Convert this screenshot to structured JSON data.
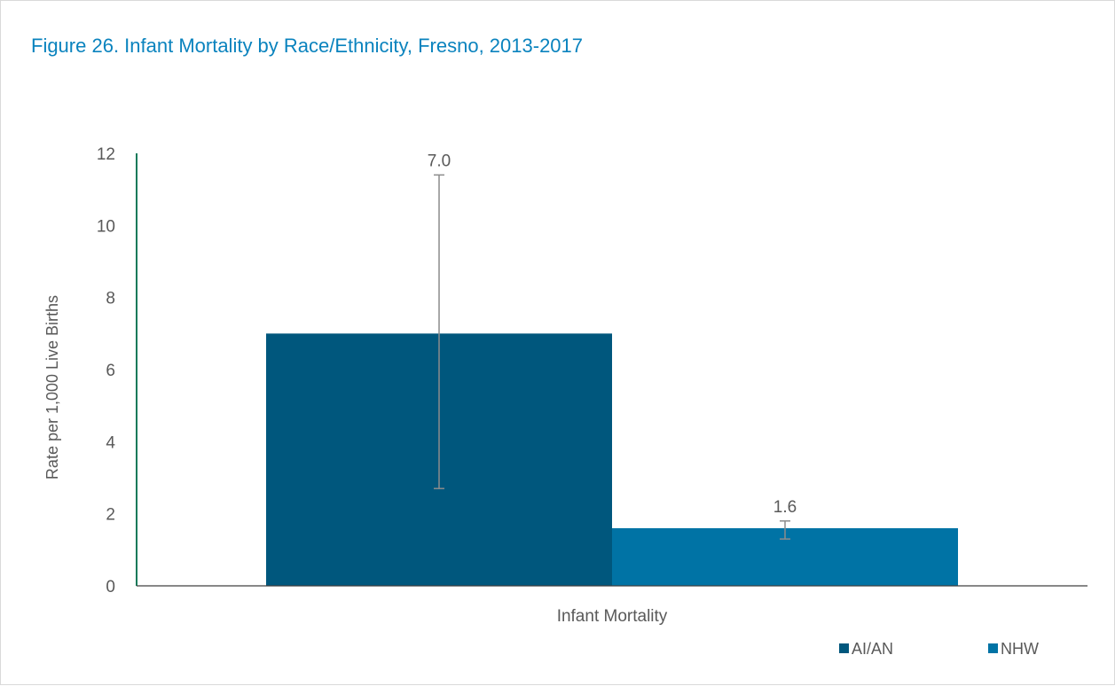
{
  "title": "Figure 26. Infant Mortality by Race/Ethnicity, Fresno, 2013-2017",
  "chart_data": {
    "type": "bar",
    "categories": [
      "Infant Mortality"
    ],
    "series": [
      {
        "name": "AI/AN",
        "values": [
          7.0
        ],
        "data_labels": [
          "7.0"
        ],
        "error_low": [
          2.7
        ],
        "error_high": [
          11.4
        ],
        "color": "#00577d"
      },
      {
        "name": "NHW",
        "values": [
          1.6
        ],
        "data_labels": [
          "1.6"
        ],
        "error_low": [
          1.3
        ],
        "error_high": [
          1.8
        ],
        "color": "#0073a5"
      }
    ],
    "ylabel": "Rate per 1,000 Live Births",
    "xlabel": "",
    "ylim": [
      0,
      12
    ],
    "yticks": [
      "0",
      "2",
      "4",
      "6",
      "8",
      "10",
      "12"
    ],
    "grid": false,
    "legend_position": "bottom-right",
    "axis_color": "#107a5a",
    "errorbar_color": "#8c8c8c"
  }
}
